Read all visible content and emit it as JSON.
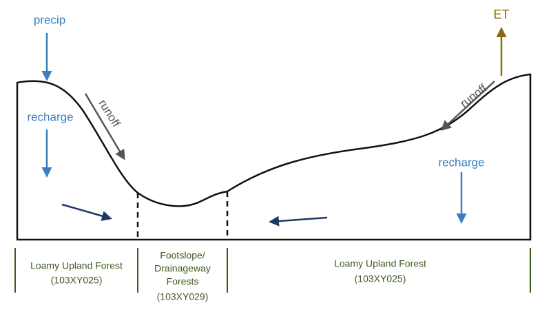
{
  "labels": {
    "precip": "precip",
    "left_recharge": "recharge",
    "left_runoff": "runoff",
    "right_runoff": "runoff",
    "et": "ET",
    "right_recharge": "recharge"
  },
  "zones": [
    {
      "lines": [
        "Loamy Upland Forest",
        "(103XY025)"
      ]
    },
    {
      "lines": [
        "Footslope/",
        "Drainageway",
        "Forests",
        "(103XY029)"
      ]
    },
    {
      "lines": [
        "Loamy Upland Forest",
        "(103XY025)"
      ]
    }
  ]
}
